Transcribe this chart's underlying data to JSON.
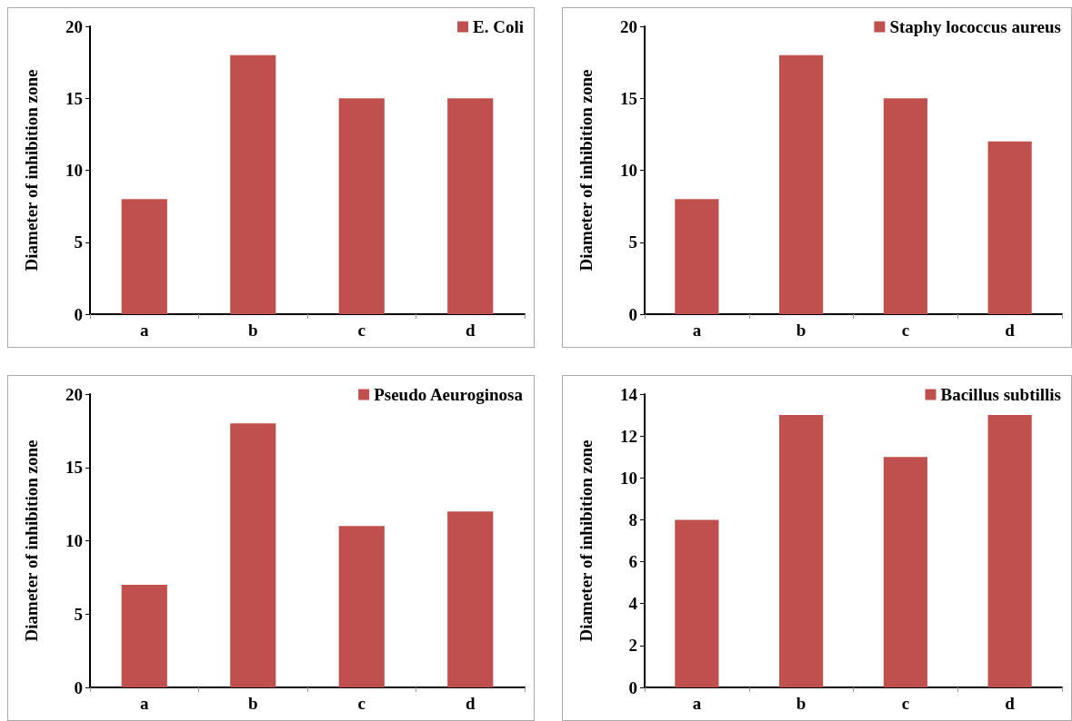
{
  "chart_data": [
    {
      "type": "bar",
      "ylabel": "Diameter of inhibition zone",
      "categories": [
        "a",
        "b",
        "c",
        "d"
      ],
      "series": [
        {
          "name": "E. Coli",
          "color": "#c0504d",
          "values": [
            8,
            18,
            15,
            15
          ]
        }
      ],
      "ylim": [
        0,
        20
      ],
      "yticks": [
        0,
        5,
        10,
        15,
        20
      ],
      "grid": false,
      "legend": "top right"
    },
    {
      "type": "bar",
      "ylabel": "Diameter of inhibition zone",
      "categories": [
        "a",
        "b",
        "c",
        "d"
      ],
      "series": [
        {
          "name": "Staphy lococcus aureus",
          "color": "#c0504d",
          "values": [
            8,
            18,
            15,
            12
          ]
        }
      ],
      "ylim": [
        0,
        20
      ],
      "yticks": [
        0,
        5,
        10,
        15,
        20
      ],
      "grid": false,
      "legend": "top right"
    },
    {
      "type": "bar",
      "ylabel": "Diameter of inhibition zone",
      "categories": [
        "a",
        "b",
        "c",
        "d"
      ],
      "series": [
        {
          "name": "Pseudo Aeuroginosa",
          "color": "#c0504d",
          "values": [
            7,
            18,
            11,
            12
          ]
        }
      ],
      "ylim": [
        0,
        20
      ],
      "yticks": [
        0,
        5,
        10,
        15,
        20
      ],
      "grid": false,
      "legend": "top right"
    },
    {
      "type": "bar",
      "ylabel": "Diameter of inhibition zone",
      "categories": [
        "a",
        "b",
        "c",
        "d"
      ],
      "series": [
        {
          "name": "Bacillus subtillis",
          "color": "#c0504d",
          "values": [
            8,
            13,
            11,
            13
          ]
        }
      ],
      "ylim": [
        0,
        14
      ],
      "yticks": [
        0,
        2,
        4,
        6,
        8,
        10,
        12,
        14
      ],
      "grid": false,
      "legend": "top right"
    }
  ]
}
